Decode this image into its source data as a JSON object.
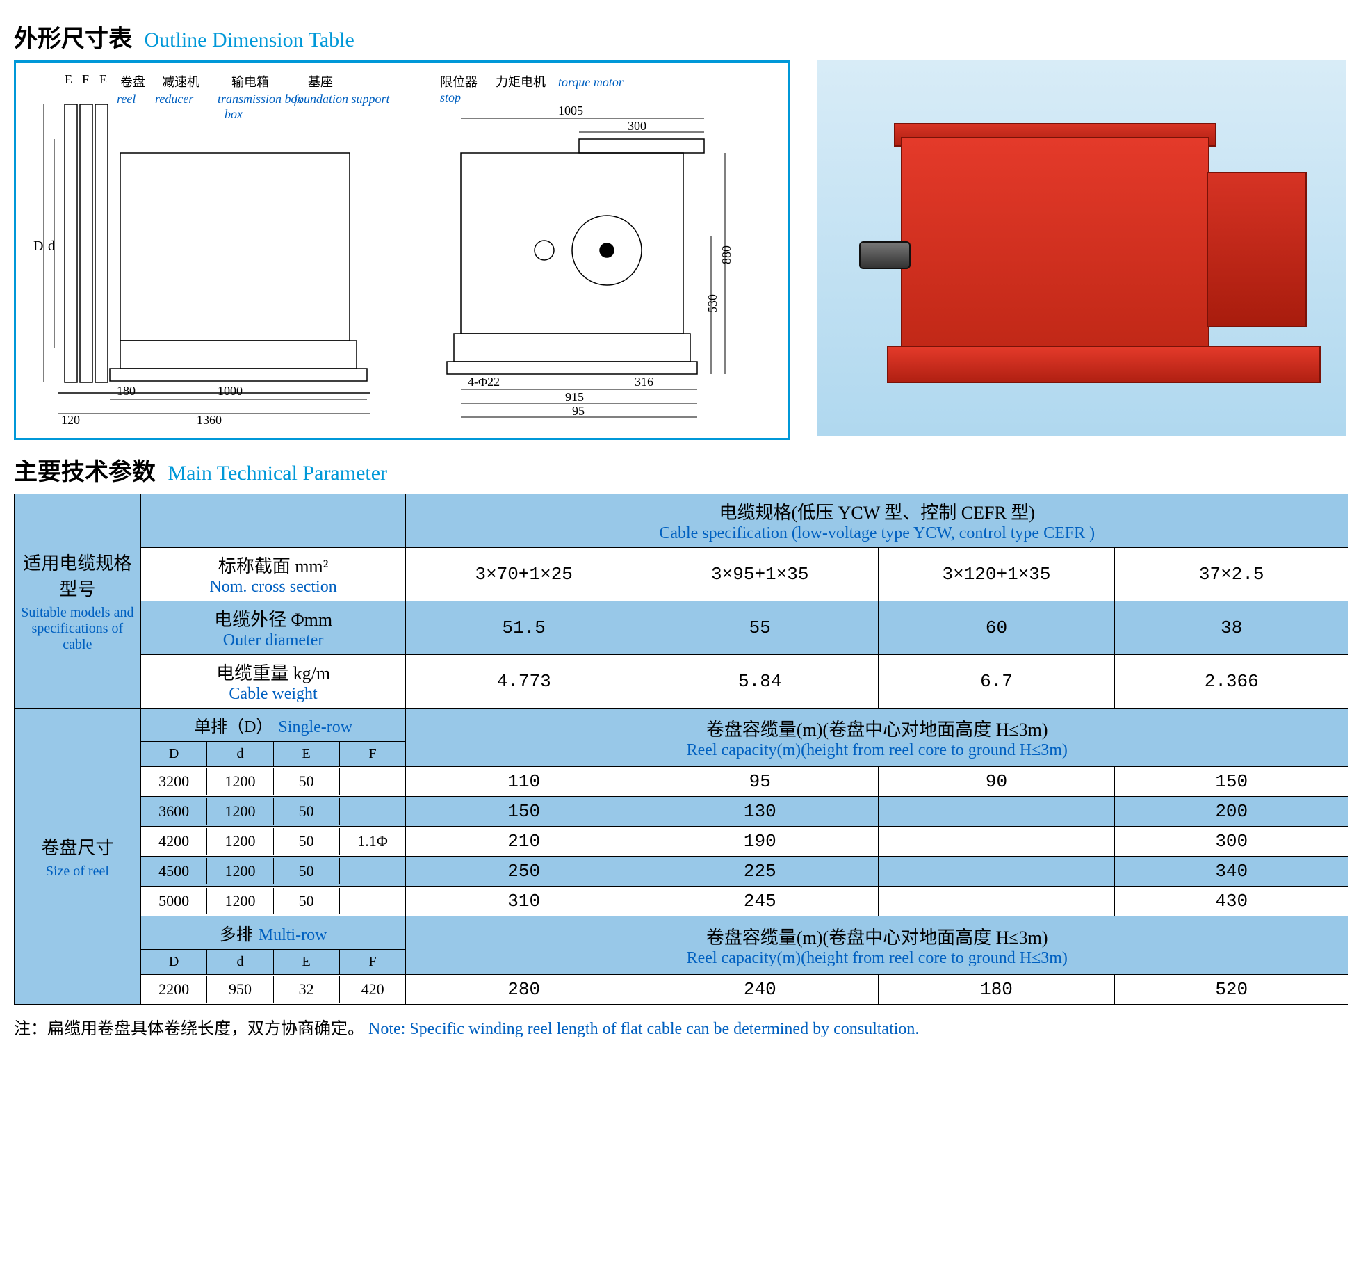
{
  "sections": {
    "outline": {
      "cn": "外形尺寸表",
      "en": "Outline Dimension Table"
    },
    "params": {
      "cn": "主要技术参数",
      "en": "Main Technical Parameter"
    }
  },
  "diagram": {
    "labels": {
      "reel": {
        "cn": "卷盘",
        "en": "reel"
      },
      "reducer": {
        "cn": "减速机",
        "en": "reducer"
      },
      "trans": {
        "cn": "输电箱",
        "en": "transmission box"
      },
      "foundation": {
        "cn": "基座",
        "en": "foundation support"
      },
      "stop": {
        "cn": "限位器",
        "en": "stop"
      },
      "torque": {
        "cn": "力矩电机",
        "en": "torque motor"
      },
      "E": "E",
      "F": "F",
      "E2": "E",
      "D": "D",
      "d": "d"
    },
    "dims": {
      "left_view": {
        "width_1360": "1360",
        "width_1000": "1000",
        "bottom_180": "180",
        "bottom_120": "120"
      },
      "right_view": {
        "top_1005": "1005",
        "top_300": "300",
        "height_880": "880",
        "height_530": "530",
        "bottom_316": "316",
        "bottom_915": "915",
        "bottom_95": "95",
        "hole": "4-Φ22"
      }
    },
    "product_color": "#d63324",
    "frame_color": "#0098d8"
  },
  "table": {
    "header": {
      "suitable": {
        "cn": "适用电缆规格型号",
        "en": "Suitable models and specifications of cable"
      },
      "spec": {
        "cn": "电缆规格(低压 YCW 型、控制 CEFR 型)",
        "en": "Cable specification (low-voltage type YCW, control type CEFR )"
      },
      "nom": {
        "cn": "标称截面 mm²",
        "en": "Nom. cross section"
      },
      "outer": {
        "cn": "电缆外径 Φmm",
        "en": "Outer diameter"
      },
      "weight": {
        "cn": "电缆重量 kg/m",
        "en": "Cable weight"
      },
      "reel": {
        "cn": "卷盘尺寸",
        "en": "Size of reel"
      },
      "single": {
        "cn": "单排（D）",
        "en": "Single-row"
      },
      "multi": {
        "cn": "多排",
        "en": "Multi-row"
      },
      "capacity": {
        "cn": "卷盘容缆量(m)(卷盘中心对地面高度 H≤3m)",
        "en": "Reel capacity(m)(height from reel core to ground H≤3m)"
      }
    },
    "cols_nom": [
      "3×70+1×25",
      "3×95+1×35",
      "3×120+1×35",
      "37×2.5"
    ],
    "cols_outer": [
      "51.5",
      "55",
      "60",
      "38"
    ],
    "cols_weight": [
      "4.773",
      "5.84",
      "6.7",
      "2.366"
    ],
    "defcols": [
      "D",
      "d",
      "E",
      "F"
    ],
    "single_rows": [
      {
        "D": "3200",
        "d": "1200",
        "E": "50",
        "F": "",
        "cap": [
          "110",
          "95",
          "90",
          "150"
        ]
      },
      {
        "D": "3600",
        "d": "1200",
        "E": "50",
        "F": "",
        "cap": [
          "150",
          "130",
          "",
          "200"
        ]
      },
      {
        "D": "4200",
        "d": "1200",
        "E": "50",
        "F": "1.1Φ",
        "cap": [
          "210",
          "190",
          "",
          "300"
        ]
      },
      {
        "D": "4500",
        "d": "1200",
        "E": "50",
        "F": "",
        "cap": [
          "250",
          "225",
          "",
          "340"
        ]
      },
      {
        "D": "5000",
        "d": "1200",
        "E": "50",
        "F": "",
        "cap": [
          "310",
          "245",
          "",
          "430"
        ]
      }
    ],
    "multi_rows": [
      {
        "D": "2200",
        "d": "950",
        "E": "32",
        "F": "420",
        "cap": [
          "280",
          "240",
          "180",
          "520"
        ]
      }
    ]
  },
  "note": {
    "cn": "注：扁缆用卷盘具体卷绕长度，双方协商确定。",
    "en": "Note: Specific winding reel length of flat cable can be determined by consultation."
  },
  "colors": {
    "header_blue": "#98c8e8",
    "text_blue": "#0060c0",
    "title_blue": "#0098d8"
  }
}
